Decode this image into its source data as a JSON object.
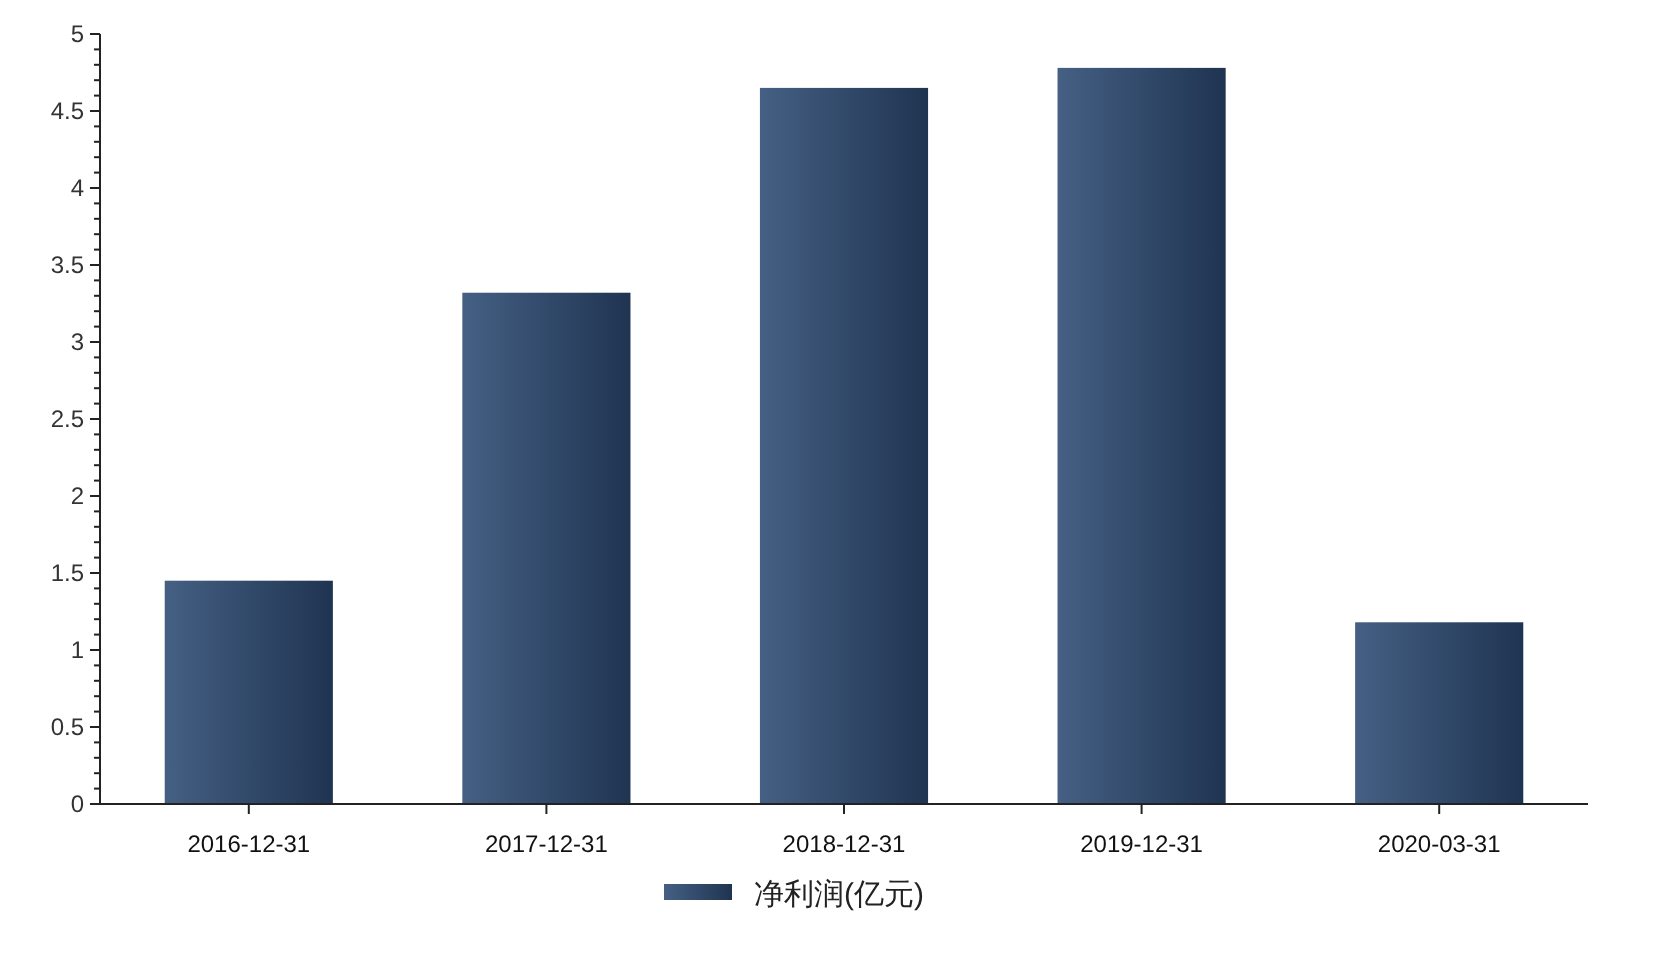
{
  "chart_data": {
    "type": "bar",
    "categories": [
      "2016-12-31",
      "2017-12-31",
      "2018-12-31",
      "2019-12-31",
      "2020-03-31"
    ],
    "series": [
      {
        "name": "净利润(亿元)",
        "color": "#2c4a73",
        "values": [
          1.45,
          3.32,
          4.65,
          4.78,
          1.18
        ]
      }
    ],
    "ylim": [
      0,
      5
    ],
    "yticks": [
      0,
      0.5,
      1,
      1.5,
      2,
      2.5,
      3,
      3.5,
      4,
      4.5,
      5
    ],
    "grid": false,
    "legend": "bottom"
  }
}
